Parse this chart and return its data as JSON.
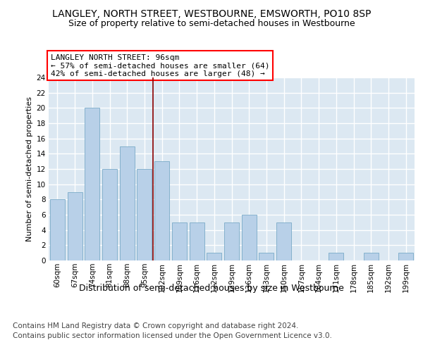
{
  "title1": "LANGLEY, NORTH STREET, WESTBOURNE, EMSWORTH, PO10 8SP",
  "title2": "Size of property relative to semi-detached houses in Westbourne",
  "xlabel": "Distribution of semi-detached houses by size in Westbourne",
  "ylabel": "Number of semi-detached properties",
  "footnote1": "Contains HM Land Registry data © Crown copyright and database right 2024.",
  "footnote2": "Contains public sector information licensed under the Open Government Licence v3.0.",
  "categories": [
    "60sqm",
    "67sqm",
    "74sqm",
    "81sqm",
    "88sqm",
    "95sqm",
    "102sqm",
    "109sqm",
    "116sqm",
    "122sqm",
    "129sqm",
    "136sqm",
    "143sqm",
    "150sqm",
    "157sqm",
    "164sqm",
    "171sqm",
    "178sqm",
    "185sqm",
    "192sqm",
    "199sqm"
  ],
  "values": [
    8,
    9,
    20,
    12,
    15,
    12,
    13,
    5,
    5,
    1,
    5,
    6,
    1,
    5,
    0,
    0,
    1,
    0,
    1,
    0,
    1
  ],
  "bar_color": "#b8d0e8",
  "bar_edge_color": "#7aaac8",
  "red_line_x": 5.5,
  "annotation_line1": "LANGLEY NORTH STREET: 96sqm",
  "annotation_line2": "← 57% of semi-detached houses are smaller (64)",
  "annotation_line3": "42% of semi-detached houses are larger (48) →",
  "ylim_max": 24,
  "yticks": [
    0,
    2,
    4,
    6,
    8,
    10,
    12,
    14,
    16,
    18,
    20,
    22,
    24
  ],
  "bg_color": "#ffffff",
  "plot_bg_color": "#dce8f2",
  "grid_color": "#ffffff",
  "title1_fontsize": 10,
  "title2_fontsize": 9,
  "xlabel_fontsize": 9,
  "ylabel_fontsize": 8,
  "tick_fontsize": 7.5,
  "annotation_fontsize": 8,
  "footnote_fontsize": 7.5
}
